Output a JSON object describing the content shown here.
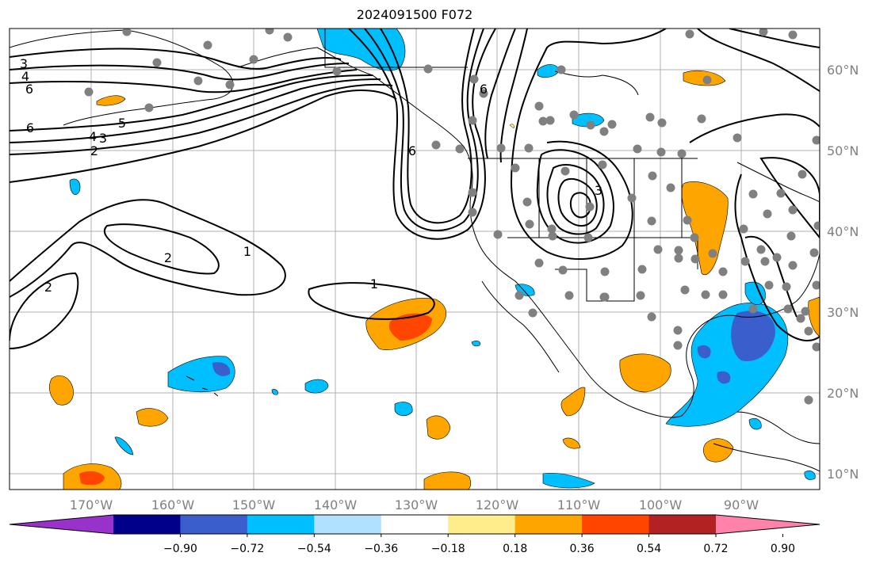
{
  "title": "2024091500 F072",
  "map": {
    "lon_ticks": [
      "170°W",
      "160°W",
      "150°W",
      "140°W",
      "130°W",
      "120°W",
      "110°W",
      "100°W",
      "90°W"
    ],
    "lat_ticks": [
      "60°N",
      "50°N",
      "40°N",
      "30°N",
      "20°N",
      "10°N"
    ],
    "contour_labels": [
      "3",
      "4",
      "6",
      "6",
      "5",
      "4",
      "3",
      "2",
      "2",
      "1",
      "2",
      "1",
      "6",
      "3",
      "6"
    ]
  },
  "colorbar": {
    "ticks": [
      "−0.90",
      "−0.72",
      "−0.54",
      "−0.36",
      "−0.18",
      "0.18",
      "0.36",
      "0.54",
      "0.72",
      "0.90"
    ],
    "colors": [
      "#9932cc",
      "#00008b",
      "#3a5fcd",
      "#00bfff",
      "#b0e2ff",
      "#ffffff",
      "#ffec8b",
      "#ffa500",
      "#ff4500",
      "#b22222",
      "#ff82ab"
    ]
  }
}
